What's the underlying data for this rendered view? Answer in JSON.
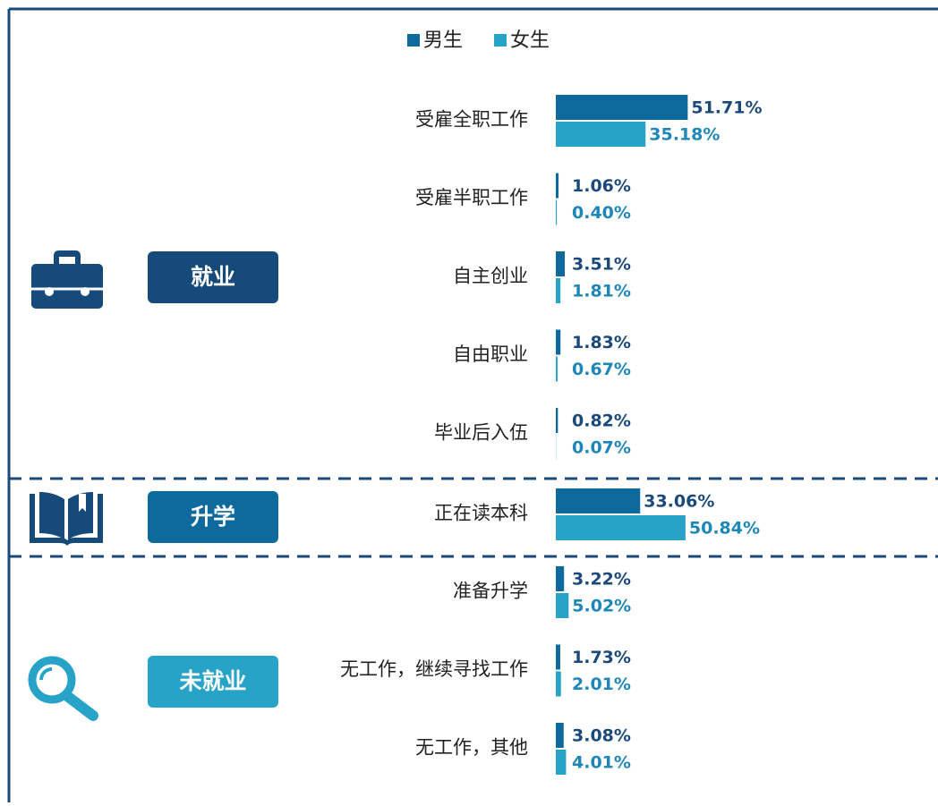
{
  "chart_data": {
    "type": "bar",
    "orientation": "horizontal",
    "series": [
      {
        "name": "男生",
        "color": "#0e6a9c",
        "label_color": "#1b4a7a"
      },
      {
        "name": "女生",
        "color": "#27a3c8",
        "label_color": "#1f86b8"
      }
    ],
    "groups": [
      {
        "name": "就业",
        "color": "#154a7a",
        "categories": [
          "受雇全职工作",
          "受雇半职工作",
          "自主创业",
          "自由职业",
          "毕业后入伍"
        ],
        "values": [
          [
            51.71,
            35.18
          ],
          [
            1.06,
            0.4
          ],
          [
            3.51,
            1.81
          ],
          [
            1.83,
            0.67
          ],
          [
            0.82,
            0.07
          ]
        ],
        "value_labels": [
          [
            "51.71%",
            "35.18%"
          ],
          [
            "1.06%",
            "0.40%"
          ],
          [
            "3.51%",
            "1.81%"
          ],
          [
            "1.83%",
            "0.67%"
          ],
          [
            "0.82%",
            "0.07%"
          ]
        ]
      },
      {
        "name": "升学",
        "color": "#0e6a9c",
        "categories": [
          "正在读本科"
        ],
        "values": [
          [
            33.06,
            50.84
          ]
        ],
        "value_labels": [
          [
            "33.06%",
            "50.84%"
          ]
        ]
      },
      {
        "name": "未就业",
        "color": "#27a3c8",
        "categories": [
          "准备升学",
          "无工作，继续寻找工作",
          "无工作，其他"
        ],
        "values": [
          [
            3.22,
            5.02
          ],
          [
            1.73,
            2.01
          ],
          [
            3.08,
            4.01
          ]
        ],
        "value_labels": [
          [
            "3.22%",
            "5.02%"
          ],
          [
            "1.73%",
            "2.01%"
          ],
          [
            "3.08%",
            "4.01%"
          ]
        ]
      }
    ]
  }
}
